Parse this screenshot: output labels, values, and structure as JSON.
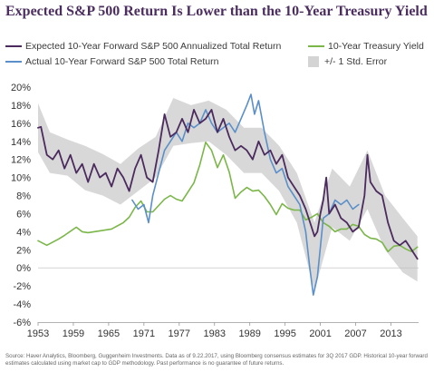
{
  "title": "Expected S&P 500 Return Is Lower than the 10-Year Treasury Yield",
  "source": "Source: Haver Analytics, Bloomberg, Guggenheim Investments. Data as of 9.22.2017, using Bloomberg consensus estimates for 3Q 2017 GDP. Historical 10-year forward estimates calculated using market cap to GDP methodology. Past performance is no guarantee of future returns.",
  "colors": {
    "expected": "#4b2a5e",
    "actual": "#5b8fc9",
    "treasury": "#7ab648",
    "error_band": "#d4d4d4",
    "title": "#4b2d5f"
  },
  "chart_data": {
    "type": "line",
    "title": "Expected S&P 500 Return Is Lower than the 10-Year Treasury Yield",
    "xlabel": "",
    "ylabel": "",
    "xlim": [
      1953,
      2017.7
    ],
    "ylim": [
      -6,
      20
    ],
    "y_ticks": [
      20,
      18,
      16,
      14,
      12,
      10,
      8,
      6,
      4,
      2,
      0,
      -2,
      -4,
      -6
    ],
    "y_tick_labels": [
      "20%",
      "18%",
      "16%",
      "14%",
      "12%",
      "10%",
      "8%",
      "6%",
      "4%",
      "2%",
      "0%",
      "-2%",
      "-4%",
      "-6%"
    ],
    "x_ticks": [
      1953,
      1959,
      1965,
      1971,
      1977,
      1983,
      1989,
      1995,
      2001,
      2007,
      2013
    ],
    "x_tick_labels": [
      "1953",
      "1959",
      "1965",
      "1971",
      "1977",
      "1983",
      "1989",
      "1995",
      "2001",
      "2007",
      "2013"
    ],
    "grid": false,
    "legend_placement": "top",
    "error_band": {
      "name": "+/- 1 Std. Error",
      "x": [
        1953,
        1955,
        1958,
        1961,
        1964,
        1967,
        1970,
        1973,
        1976,
        1979,
        1982,
        1985,
        1988,
        1991,
        1994,
        1997,
        2000,
        2003,
        2006,
        2009,
        2012,
        2015,
        2017.5
      ],
      "upper": [
        18.2,
        15,
        14.2,
        13.5,
        12.6,
        11.5,
        13.2,
        14.5,
        18.8,
        18,
        18.5,
        17.5,
        15.5,
        15.5,
        13.5,
        10.5,
        5,
        11,
        9,
        13,
        8,
        5.5,
        3.5
      ],
      "lower": [
        12.8,
        10.5,
        10.2,
        8.6,
        8,
        7,
        8.5,
        10,
        13.5,
        13.8,
        14,
        12.5,
        10.5,
        10.5,
        8.5,
        5,
        -2.5,
        4.5,
        3,
        6.5,
        2,
        -0.5,
        -1.5
      ]
    },
    "series": [
      {
        "name": "Expected 10-Year Forward S&P 500 Annualized Total Return",
        "x": [
          1953,
          1953.5,
          1954.5,
          1955.5,
          1956.5,
          1957.5,
          1958.5,
          1959.5,
          1960.5,
          1961.5,
          1962.5,
          1963.5,
          1964.5,
          1965.5,
          1966.5,
          1967.5,
          1968.5,
          1969.5,
          1970.5,
          1971.5,
          1972.5,
          1973.5,
          1974.5,
          1975.5,
          1976.5,
          1977.5,
          1978.5,
          1979.5,
          1980.5,
          1981.5,
          1982.5,
          1983.5,
          1984.5,
          1985.5,
          1986.5,
          1987.5,
          1988.5,
          1989.5,
          1990.5,
          1991.5,
          1992.5,
          1993.5,
          1994.5,
          1995.5,
          1996.5,
          1997.5,
          1998.5,
          1999.5,
          2000,
          2000.5,
          2001,
          2001.5,
          2002,
          2002.5,
          2003.5,
          2004.5,
          2005.5,
          2006.5,
          2007.5,
          2008.5,
          2009,
          2009.5,
          2010.5,
          2011.5,
          2012.5,
          2013.5,
          2014.5,
          2015.5,
          2016.5,
          2017.5
        ],
        "values": [
          15.5,
          15.6,
          12.5,
          12.0,
          13.0,
          11.0,
          12.5,
          10.5,
          11.5,
          9.5,
          11.5,
          10.0,
          10.5,
          9.0,
          11.0,
          10.0,
          8.5,
          11.0,
          12.5,
          10.0,
          9.5,
          13.0,
          17.0,
          14.5,
          15.0,
          16.5,
          15.0,
          17.5,
          16.0,
          16.5,
          17.5,
          15.0,
          16.5,
          14.5,
          13.0,
          13.5,
          13.0,
          12.0,
          14.0,
          12.5,
          13.0,
          11.5,
          12.5,
          10.0,
          9.0,
          8.0,
          6.5,
          4.5,
          3.5,
          4.0,
          6.0,
          7.5,
          10.0,
          6.0,
          7.0,
          5.5,
          5.0,
          4.0,
          4.5,
          8.0,
          12.5,
          9.5,
          8.5,
          8.0,
          5.0,
          3.0,
          2.5,
          3.0,
          2.0,
          1.0
        ]
      },
      {
        "name": "Actual 10-Year Forward S&P 500 Total Return",
        "x": [
          1969,
          1970,
          1971,
          1971.8,
          1972.5,
          1973.5,
          1974.5,
          1975.5,
          1976.5,
          1977.5,
          1978.5,
          1979.5,
          1980.5,
          1981.5,
          1982.5,
          1983.5,
          1984.5,
          1985.5,
          1986.5,
          1987.5,
          1988.5,
          1989.2,
          1989.8,
          1990.5,
          1991.5,
          1992.5,
          1993.5,
          1994.5,
          1995.5,
          1996.5,
          1997.5,
          1998.5,
          1999.2,
          1999.8,
          2000.5,
          2001.5,
          2002.5,
          2003.5,
          2004.5,
          2005.5,
          2006.5,
          2007.5
        ],
        "values": [
          7.5,
          6.5,
          7.0,
          5.0,
          8.0,
          10.5,
          13.0,
          14.0,
          15.0,
          14.0,
          16.0,
          15.5,
          16.0,
          17.5,
          16.0,
          15.0,
          15.5,
          16.0,
          15.0,
          16.5,
          18.0,
          19.2,
          17.0,
          18.5,
          15.0,
          12.0,
          10.5,
          11.0,
          9.0,
          8.0,
          7.0,
          4.0,
          0.0,
          -3.0,
          -1.0,
          5.5,
          6.0,
          7.5,
          7.0,
          7.5,
          6.5,
          7.0
        ]
      },
      {
        "name": "10-Year Treasury Yield",
        "x": [
          1953,
          1954.5,
          1956.5,
          1957.5,
          1959.5,
          1960.5,
          1961.5,
          1963.5,
          1965.5,
          1967.5,
          1968.5,
          1969.5,
          1970.5,
          1971.5,
          1972.5,
          1973.5,
          1974.5,
          1975.5,
          1976.5,
          1977.5,
          1978.5,
          1979.5,
          1980.5,
          1981.5,
          1982.5,
          1983.5,
          1984.5,
          1985.5,
          1986.5,
          1987.5,
          1988.5,
          1989.5,
          1990.5,
          1991.5,
          1992.5,
          1993.5,
          1994.5,
          1995.5,
          1996.5,
          1997.5,
          1998.5,
          1999.5,
          2000.5,
          2001.5,
          2002.5,
          2003.5,
          2004.5,
          2005.5,
          2006.5,
          2007.5,
          2008.5,
          2009.5,
          2010.5,
          2011.5,
          2012.5,
          2013.5,
          2014.5,
          2015.5,
          2016.5,
          2017.5
        ],
        "values": [
          3.0,
          2.5,
          3.2,
          3.6,
          4.5,
          4.0,
          3.9,
          4.1,
          4.3,
          5.0,
          5.6,
          6.7,
          7.4,
          6.2,
          6.2,
          6.9,
          7.6,
          8.0,
          7.6,
          7.4,
          8.4,
          9.4,
          11.4,
          13.9,
          13.0,
          11.1,
          12.5,
          10.6,
          7.7,
          8.4,
          8.9,
          8.5,
          8.6,
          7.9,
          7.0,
          5.9,
          7.1,
          6.6,
          6.4,
          6.4,
          5.3,
          5.6,
          6.0,
          5.0,
          4.6,
          4.0,
          4.3,
          4.3,
          4.8,
          4.6,
          3.7,
          3.3,
          3.2,
          2.8,
          1.8,
          2.4,
          2.5,
          2.1,
          1.8,
          2.3
        ]
      }
    ]
  },
  "legend": {
    "expected_label": "Expected 10-Year Forward S&P 500 Annualized Total Return",
    "actual_label": "Actual 10-Year Forward S&P 500 Total Return",
    "treasury_label": "10-Year Treasury Yield",
    "error_label": "+/- 1 Std. Error"
  }
}
